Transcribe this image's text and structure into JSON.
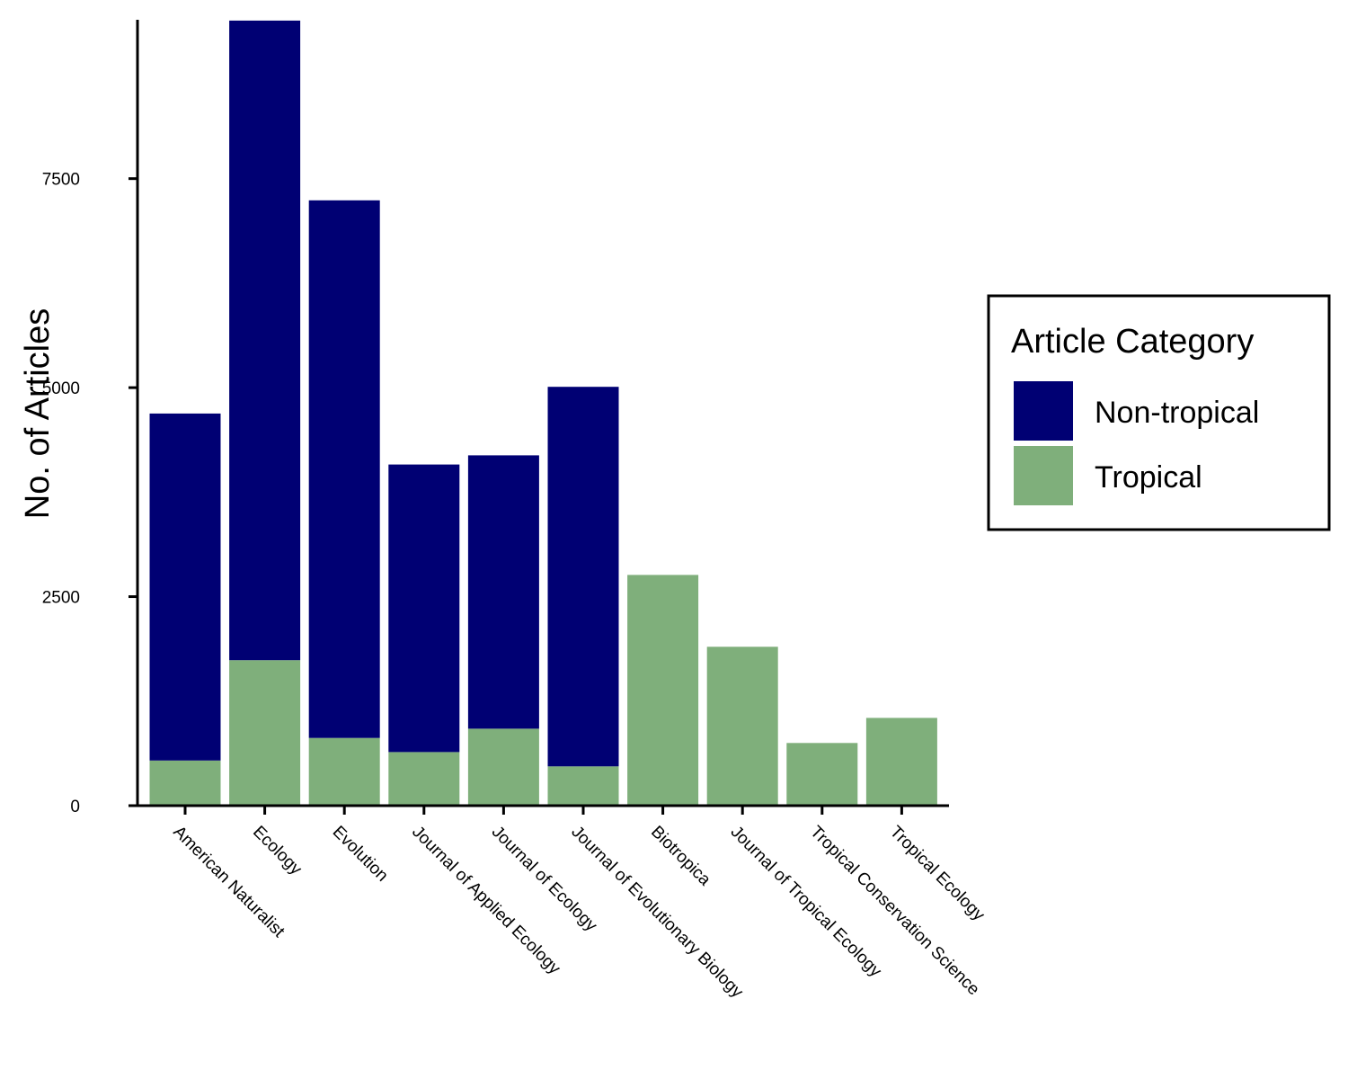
{
  "chart_data": {
    "type": "bar",
    "stacked": true,
    "categories": [
      "American Naturalist",
      "Ecology",
      "Evolution",
      "Journal of Applied Ecology",
      "Journal of Ecology",
      "Journal of Evolutionary Biology",
      "Biotropica",
      "Journal of Tropical Ecology",
      "Tropical Conservation Science",
      "Tropical Ecology"
    ],
    "series": [
      {
        "name": "Tropical",
        "color": "#7faf7b",
        "values": [
          540,
          1740,
          810,
          640,
          920,
          470,
          2760,
          1900,
          750,
          1050
        ]
      },
      {
        "name": "Non-tropical",
        "color": "#000073",
        "values": [
          4150,
          7650,
          6430,
          3440,
          3270,
          4540,
          0,
          0,
          0,
          0
        ]
      }
    ],
    "title": "",
    "xlabel": "",
    "ylabel": "No. of Articles",
    "yticks": [
      0,
      2500,
      5000,
      7500
    ],
    "ylim": [
      0,
      9400
    ],
    "grid": false,
    "legend": {
      "title": "Article Category",
      "position": "right",
      "order": [
        "Non-tropical",
        "Tropical"
      ]
    }
  }
}
